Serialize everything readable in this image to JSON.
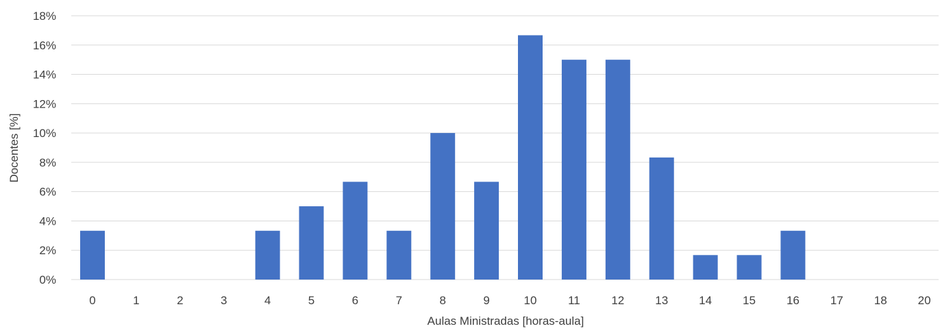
{
  "chart_data": {
    "type": "bar",
    "title": "",
    "xlabel": "Aulas Ministradas [horas-aula]",
    "ylabel": "Docentes [%]",
    "categories": [
      "0",
      "1",
      "2",
      "3",
      "4",
      "5",
      "6",
      "7",
      "8",
      "9",
      "10",
      "11",
      "12",
      "13",
      "14",
      "15",
      "16",
      "17",
      "18",
      "20"
    ],
    "values": [
      3.33,
      0,
      0,
      0,
      3.33,
      5.0,
      6.67,
      3.33,
      10.0,
      6.67,
      16.67,
      15.0,
      15.0,
      8.33,
      1.67,
      1.67,
      3.33,
      0,
      0,
      0
    ],
    "ylim": [
      0,
      18
    ],
    "yticks": [
      "0%",
      "2%",
      "4%",
      "6%",
      "8%",
      "10%",
      "12%",
      "14%",
      "16%",
      "18%"
    ],
    "ytick_values": [
      0,
      2,
      4,
      6,
      8,
      10,
      12,
      14,
      16,
      18
    ],
    "grid": true,
    "legend": "none",
    "bar_color": "#4472c4"
  }
}
